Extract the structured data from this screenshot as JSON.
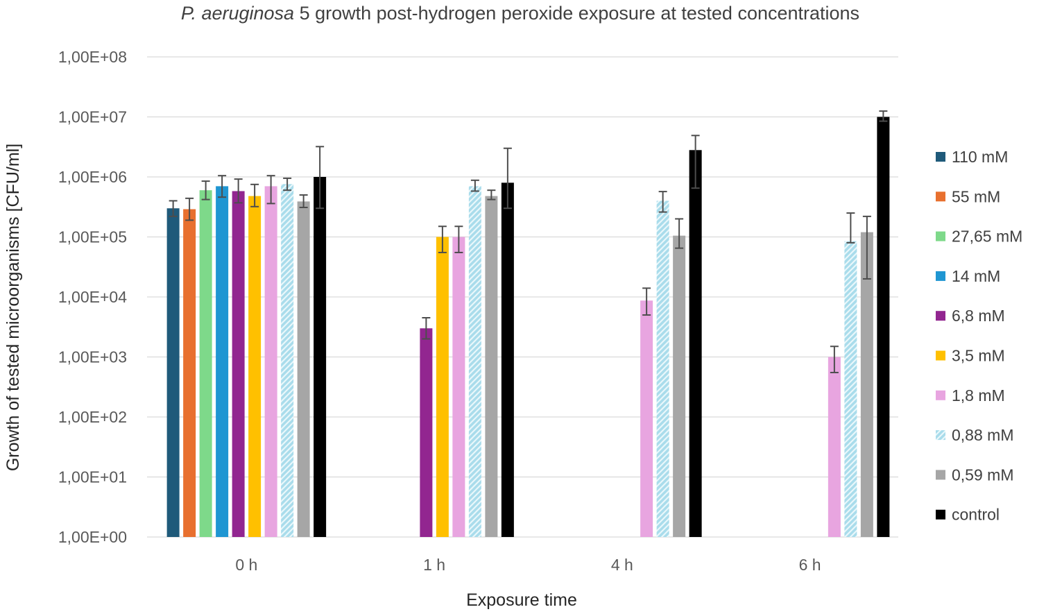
{
  "chart_data": {
    "type": "bar",
    "title_italic": "P. aeruginosa",
    "title_rest": " 5 growth post-hydrogen peroxide exposure at tested concentrations",
    "xlabel": "Exposure time",
    "ylabel": "Growth of tested microorganisms [CFU/ml]",
    "yscale": "log",
    "ylim": [
      1,
      100000000
    ],
    "yticks": [
      {
        "value": 100000000,
        "label": "1,00E+08"
      },
      {
        "value": 10000000,
        "label": "1,00E+07"
      },
      {
        "value": 1000000,
        "label": "1,00E+06"
      },
      {
        "value": 100000,
        "label": "1,00E+05"
      },
      {
        "value": 10000,
        "label": "1,00E+04"
      },
      {
        "value": 1000,
        "label": "1,00E+03"
      },
      {
        "value": 100,
        "label": "1,00E+02"
      },
      {
        "value": 10,
        "label": "1,00E+01"
      },
      {
        "value": 1,
        "label": "1,00E+00"
      }
    ],
    "categories": [
      "0 h",
      "1 h",
      "4 h",
      "6 h"
    ],
    "legend_position": "right",
    "series": [
      {
        "name": "110 mM",
        "color": "#1f5a7a",
        "pattern": "solid",
        "values": [
          300000,
          null,
          null,
          null
        ],
        "err_low": [
          220000,
          null,
          null,
          null
        ],
        "err_high": [
          400000,
          null,
          null,
          null
        ]
      },
      {
        "name": "55 mM",
        "color": "#e8702f",
        "pattern": "solid",
        "values": [
          290000,
          null,
          null,
          null
        ],
        "err_low": [
          190000,
          null,
          null,
          null
        ],
        "err_high": [
          440000,
          null,
          null,
          null
        ]
      },
      {
        "name": "27,65 mM",
        "color": "#7ed98a",
        "pattern": "solid",
        "values": [
          600000,
          null,
          null,
          null
        ],
        "err_low": [
          420000,
          null,
          null,
          null
        ],
        "err_high": [
          850000,
          null,
          null,
          null
        ]
      },
      {
        "name": "14 mM",
        "color": "#1f96d2",
        "pattern": "solid",
        "values": [
          700000,
          null,
          null,
          null
        ],
        "err_low": [
          460000,
          null,
          null,
          null
        ],
        "err_high": [
          1050000,
          null,
          null,
          null
        ]
      },
      {
        "name": "6,8 mM",
        "color": "#922690",
        "pattern": "solid",
        "values": [
          580000,
          3000,
          null,
          null
        ],
        "err_low": [
          370000,
          2000,
          null,
          null
        ],
        "err_high": [
          920000,
          4500,
          null,
          null
        ]
      },
      {
        "name": "3,5 mM",
        "color": "#ffc000",
        "pattern": "solid",
        "values": [
          480000,
          100000,
          null,
          null
        ],
        "err_low": [
          320000,
          55000,
          null,
          null
        ],
        "err_high": [
          750000,
          150000,
          null,
          null
        ]
      },
      {
        "name": "1,8 mM",
        "color": "#e8a5e0",
        "pattern": "solid",
        "values": [
          700000,
          100000,
          8700,
          1000
        ],
        "err_low": [
          360000,
          55000,
          5000,
          550
        ],
        "err_high": [
          1050000,
          150000,
          14000,
          1500
        ]
      },
      {
        "name": "0,88 mM",
        "color": "#a9dceb",
        "pattern": "hatched",
        "values": [
          760000,
          700000,
          400000,
          85000
        ],
        "err_low": [
          600000,
          580000,
          260000,
          80000
        ],
        "err_high": [
          950000,
          880000,
          570000,
          250000
        ]
      },
      {
        "name": "0,59 mM",
        "color": "#a6a6a6",
        "pattern": "solid",
        "values": [
          390000,
          480000,
          105000,
          120000
        ],
        "err_low": [
          310000,
          420000,
          65000,
          20000
        ],
        "err_high": [
          500000,
          600000,
          200000,
          220000
        ]
      },
      {
        "name": "control",
        "color": "#000000",
        "pattern": "solid",
        "values": [
          1000000,
          800000,
          2800000,
          10000000
        ],
        "err_low": [
          300000,
          300000,
          650000,
          8500000
        ],
        "err_high": [
          3200000,
          3000000,
          4900000,
          12500000
        ]
      }
    ]
  }
}
